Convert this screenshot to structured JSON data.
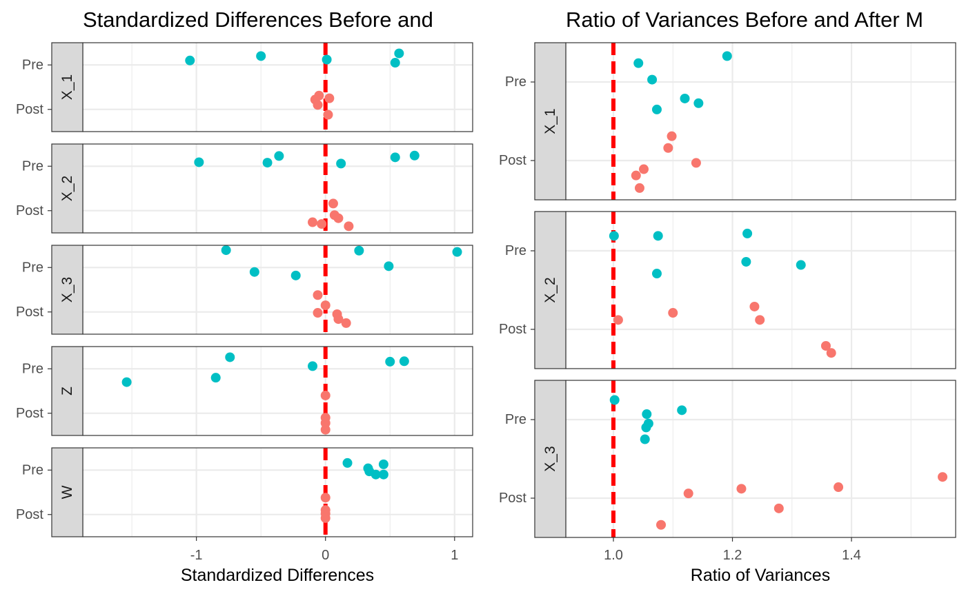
{
  "chart_data": [
    {
      "type": "scatter",
      "title": "Standardized Differences Before and",
      "xlabel": "Standardized Differences",
      "x_ticks": [
        "-1",
        "0",
        "1"
      ],
      "x_tick_values": [
        -1,
        0,
        1
      ],
      "xlim": [
        -1.88,
        1.14
      ],
      "y_categories": [
        "Pre",
        "Post"
      ],
      "reference_line": {
        "x": 0,
        "color": "#ff0000",
        "style": "dashed"
      },
      "colors": {
        "Pre": "#00bfc4",
        "Post": "#f8766d"
      },
      "panels": [
        {
          "label": "X_1",
          "series": [
            {
              "group": "Pre",
              "points": [
                [
                  -1.05,
                  0.1
                ],
                [
                  -0.5,
                  0.2
                ],
                [
                  0.01,
                  0.12
                ],
                [
                  0.54,
                  0.05
                ],
                [
                  0.57,
                  0.26
                ]
              ]
            },
            {
              "group": "Post",
              "points": [
                [
                  -0.05,
                  0.31
                ],
                [
                  -0.08,
                  0.22
                ],
                [
                  -0.06,
                  0.1
                ],
                [
                  0.03,
                  0.25
                ],
                [
                  0.02,
                  -0.12
                ]
              ]
            }
          ]
        },
        {
          "label": "X_2",
          "series": [
            {
              "group": "Pre",
              "points": [
                [
                  -0.98,
                  0.09
                ],
                [
                  -0.45,
                  0.08
                ],
                [
                  -0.36,
                  0.23
                ],
                [
                  0.12,
                  0.06
                ],
                [
                  0.54,
                  0.2
                ],
                [
                  0.69,
                  0.24
                ]
              ]
            },
            {
              "group": "Post",
              "points": [
                [
                  0.06,
                  0.16
                ],
                [
                  0.07,
                  -0.1
                ],
                [
                  0.1,
                  -0.17
                ],
                [
                  0.18,
                  -0.35
                ],
                [
                  -0.1,
                  -0.26
                ],
                [
                  -0.03,
                  -0.3
                ]
              ]
            }
          ]
        },
        {
          "label": "X_3",
          "series": [
            {
              "group": "Pre",
              "points": [
                [
                  -0.77,
                  0.39
                ],
                [
                  0.26,
                  0.38
                ],
                [
                  1.02,
                  0.35
                ],
                [
                  -0.55,
                  -0.1
                ],
                [
                  0.49,
                  0.03
                ],
                [
                  -0.23,
                  -0.18
                ]
              ]
            },
            {
              "group": "Post",
              "points": [
                [
                  -0.06,
                  0.38
                ],
                [
                  0.0,
                  0.15
                ],
                [
                  -0.06,
                  -0.02
                ],
                [
                  0.09,
                  -0.05
                ],
                [
                  0.1,
                  -0.16
                ],
                [
                  0.16,
                  -0.25
                ]
              ]
            }
          ]
        },
        {
          "label": "Z",
          "series": [
            {
              "group": "Pre",
              "points": [
                [
                  -1.54,
                  -0.3
                ],
                [
                  -0.74,
                  0.26
                ],
                [
                  -0.85,
                  -0.2
                ],
                [
                  -0.1,
                  0.06
                ],
                [
                  0.5,
                  0.16
                ],
                [
                  0.61,
                  0.17
                ]
              ]
            },
            {
              "group": "Post",
              "points": [
                [
                  0.0,
                  0.4
                ],
                [
                  0.0,
                  -0.1
                ],
                [
                  0.0,
                  -0.22
                ],
                [
                  0.0,
                  -0.37
                ]
              ]
            }
          ]
        },
        {
          "label": "W",
          "series": [
            {
              "group": "Pre",
              "points": [
                [
                  0.17,
                  0.16
                ],
                [
                  0.33,
                  0.04
                ],
                [
                  0.34,
                  -0.03
                ],
                [
                  0.39,
                  -0.1
                ],
                [
                  0.45,
                  0.13
                ],
                [
                  0.45,
                  -0.1
                ]
              ]
            },
            {
              "group": "Post",
              "points": [
                [
                  0.0,
                  0.38
                ],
                [
                  0.0,
                  0.1
                ],
                [
                  0.0,
                  0.02
                ],
                [
                  0.0,
                  -0.08
                ]
              ]
            }
          ]
        }
      ]
    },
    {
      "type": "scatter",
      "title": "Ratio of Variances Before and After M",
      "xlabel": "Ratio of Variances",
      "x_ticks": [
        "1.0",
        "1.2",
        "1.4"
      ],
      "x_tick_values": [
        1.0,
        1.2,
        1.4
      ],
      "xlim": [
        0.92,
        1.575
      ],
      "y_categories": [
        "Pre",
        "Post"
      ],
      "reference_line": {
        "x": 1,
        "color": "#ff0000",
        "style": "dashed"
      },
      "colors": {
        "Pre": "#00bfc4",
        "Post": "#f8766d"
      },
      "panels": [
        {
          "label": "X_1",
          "series": [
            {
              "group": "Pre",
              "points": [
                [
                  1.191,
                  0.33
                ],
                [
                  1.042,
                  0.24
                ],
                [
                  1.065,
                  0.03
                ],
                [
                  1.12,
                  -0.21
                ],
                [
                  1.143,
                  -0.27
                ],
                [
                  1.073,
                  -0.35
                ]
              ]
            },
            {
              "group": "Post",
              "points": [
                [
                  1.098,
                  0.31
                ],
                [
                  1.092,
                  0.16
                ],
                [
                  1.139,
                  -0.03
                ],
                [
                  1.051,
                  -0.11
                ],
                [
                  1.038,
                  -0.19
                ],
                [
                  1.044,
                  -0.35
                ]
              ]
            }
          ]
        },
        {
          "label": "X_2",
          "series": [
            {
              "group": "Pre",
              "points": [
                [
                  1.001,
                  0.19
                ],
                [
                  1.075,
                  0.19
                ],
                [
                  1.225,
                  0.22
                ],
                [
                  1.223,
                  -0.14
                ],
                [
                  1.315,
                  -0.18
                ],
                [
                  1.073,
                  -0.29
                ]
              ]
            },
            {
              "group": "Post",
              "points": [
                [
                  1.237,
                  0.29
                ],
                [
                  1.1,
                  0.21
                ],
                [
                  1.246,
                  0.12
                ],
                [
                  1.008,
                  0.12
                ],
                [
                  1.357,
                  -0.21
                ],
                [
                  1.366,
                  -0.3
                ]
              ]
            }
          ]
        },
        {
          "label": "X_3",
          "series": [
            {
              "group": "Pre",
              "points": [
                [
                  1.002,
                  0.25
                ],
                [
                  1.115,
                  0.12
                ],
                [
                  1.056,
                  0.07
                ],
                [
                  1.059,
                  -0.05
                ],
                [
                  1.055,
                  -0.1
                ],
                [
                  1.053,
                  -0.25
                ]
              ]
            },
            {
              "group": "Post",
              "points": [
                [
                  1.553,
                  0.27
                ],
                [
                  1.215,
                  0.12
                ],
                [
                  1.378,
                  0.14
                ],
                [
                  1.126,
                  0.06
                ],
                [
                  1.278,
                  -0.13
                ],
                [
                  1.08,
                  -0.34
                ]
              ]
            }
          ]
        }
      ]
    }
  ]
}
